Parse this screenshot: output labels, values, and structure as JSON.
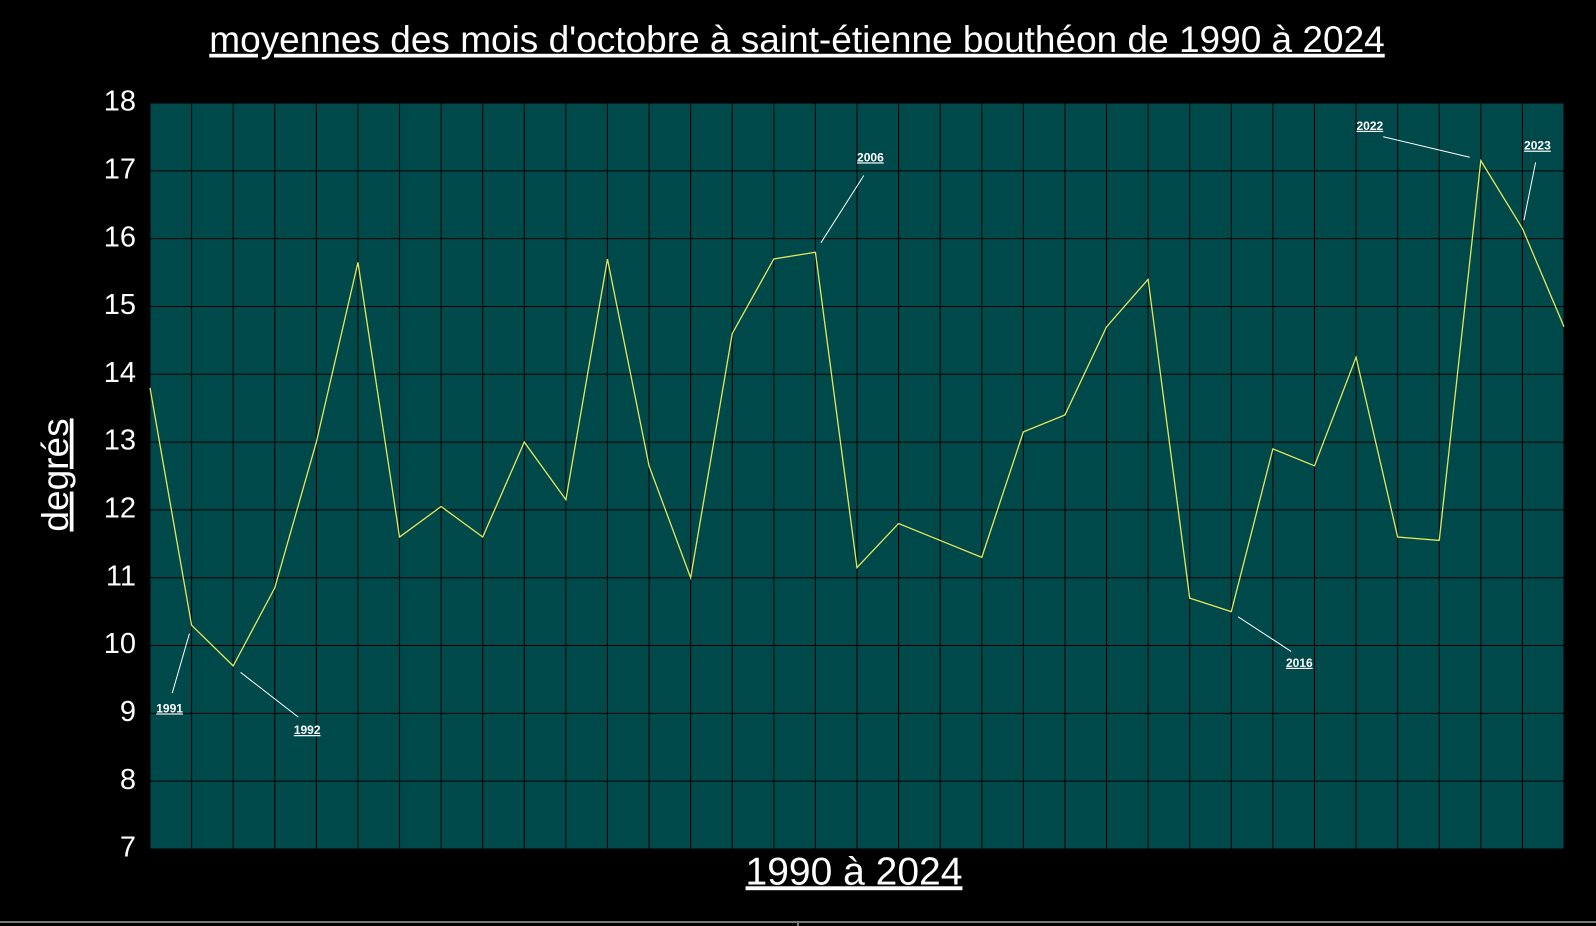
{
  "chart_data": {
    "type": "line",
    "title": "moyennes des mois d'octobre à saint-étienne bouthéon de 1990 à 2024",
    "x_label": "1990  à  2024",
    "y_label": "degrés",
    "categories": [
      null,
      "1991",
      "1992",
      null,
      null,
      null,
      null,
      null,
      null,
      null,
      null,
      null,
      null,
      null,
      null,
      null,
      "2006",
      null,
      null,
      null,
      null,
      null,
      null,
      null,
      null,
      null,
      "2016",
      null,
      null,
      null,
      null,
      null,
      "2022",
      "2023",
      null
    ],
    "series": [
      {
        "name": "octobre",
        "color": "#e6e65a",
        "values": [
          13.8,
          10.3,
          9.7,
          10.85,
          13.0,
          15.65,
          11.6,
          12.05,
          11.6,
          13.0,
          12.15,
          15.7,
          12.65,
          11.0,
          14.6,
          15.7,
          15.8,
          11.15,
          11.8,
          11.55,
          11.3,
          13.15,
          13.4,
          14.7,
          15.4,
          10.7,
          10.5,
          12.9,
          12.65,
          14.25,
          11.6,
          11.55,
          17.15,
          16.15,
          14.7
        ]
      }
    ],
    "ylim": [
      7,
      18
    ],
    "yticks": [
      7,
      8,
      9,
      10,
      11,
      12,
      13,
      14,
      15,
      16,
      17,
      18
    ],
    "grid": true,
    "background": "#00494a"
  }
}
